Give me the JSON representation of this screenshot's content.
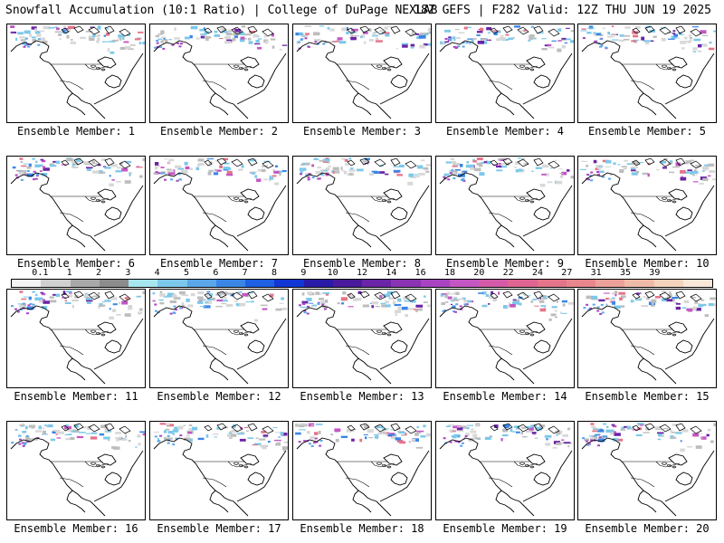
{
  "header": {
    "title": "Snowfall Accumulation (10:1 Ratio) | College of DuPage NEXLAB",
    "run_info": "18Z GEFS | F282 Valid: 12Z THU JUN 19 2025"
  },
  "colorbar": {
    "labels": [
      "0.1",
      "1",
      "2",
      "3",
      "4",
      "5",
      "6",
      "7",
      "8",
      "9",
      "10",
      "12",
      "14",
      "16",
      "18",
      "20",
      "22",
      "24",
      "27",
      "31",
      "35",
      "39"
    ],
    "colors": [
      "#f4f4f4",
      "#d0d0d0",
      "#a8a8a8",
      "#8c8c8c",
      "#a8e6ef",
      "#7cc8ea",
      "#5aa6e8",
      "#3a86e6",
      "#1f5fe2",
      "#1236d4",
      "#2a1aa8",
      "#4a1a9c",
      "#6a24a6",
      "#8a34b4",
      "#a844c2",
      "#c456c4",
      "#d45aa8",
      "#de6492",
      "#e4748a",
      "#e8868e",
      "#eca09a",
      "#f0baa8",
      "#f4d2bc",
      "#f8e6d8"
    ]
  },
  "panels": [
    {
      "label": "Ensemble Member: 1"
    },
    {
      "label": "Ensemble Member: 2"
    },
    {
      "label": "Ensemble Member: 3"
    },
    {
      "label": "Ensemble Member: 4"
    },
    {
      "label": "Ensemble Member: 5"
    },
    {
      "label": "Ensemble Member: 6"
    },
    {
      "label": "Ensemble Member: 7"
    },
    {
      "label": "Ensemble Member: 8"
    },
    {
      "label": "Ensemble Member: 9"
    },
    {
      "label": "Ensemble Member: 10"
    },
    {
      "label": "Ensemble Member: 11"
    },
    {
      "label": "Ensemble Member: 12"
    },
    {
      "label": "Ensemble Member: 13"
    },
    {
      "label": "Ensemble Member: 14"
    },
    {
      "label": "Ensemble Member: 15"
    },
    {
      "label": "Ensemble Member: 16"
    },
    {
      "label": "Ensemble Member: 17"
    },
    {
      "label": "Ensemble Member: 18"
    },
    {
      "label": "Ensemble Member: 19"
    },
    {
      "label": "Ensemble Member: 20"
    }
  ]
}
